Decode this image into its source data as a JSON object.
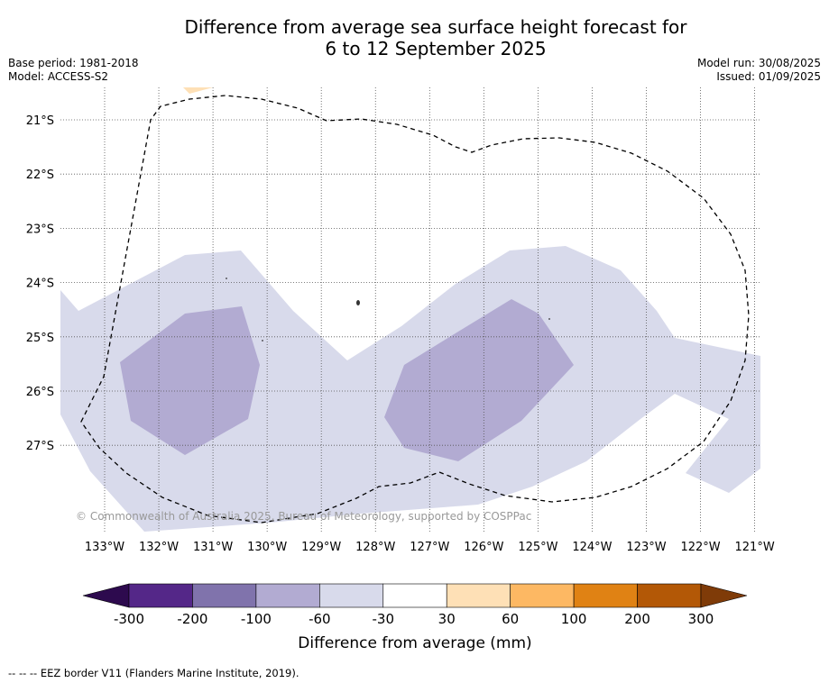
{
  "title_line1": "Difference from average sea surface height forecast for",
  "title_line2": "6 to 12 September 2025",
  "base_period": "Base period: 1981-2018",
  "model": "Model: ACCESS-S2",
  "model_run": "Model run: 30/08/2025",
  "issued": "Issued: 01/09/2025",
  "copyright": "© Commonwealth of Australia 2025, Bureau of Meteorology, supported by COSPPac",
  "lat_labels": [
    "21°S",
    "22°S",
    "23°S",
    "24°S",
    "25°S",
    "26°S",
    "27°S"
  ],
  "lon_labels": [
    "133°W",
    "132°W",
    "131°W",
    "130°W",
    "129°W",
    "128°W",
    "127°W",
    "126°W",
    "125°W",
    "124°W",
    "123°W",
    "122°W",
    "121°W"
  ],
  "colorbar": {
    "label": "Difference from average (mm)",
    "ticks": [
      "-300",
      "-200",
      "-100",
      "-60",
      "-30",
      "30",
      "60",
      "100",
      "200",
      "300"
    ],
    "low_extend_color": "#2d0a4e",
    "high_extend_color": "#7f3b08",
    "colors": [
      "#542788",
      "#8073ac",
      "#b2abd2",
      "#d8daeb",
      "#ffffff",
      "#fee0b6",
      "#fdb863",
      "#e08214",
      "#b35806"
    ]
  },
  "colors": {
    "light_purple": "#d8daeb",
    "mid_purple": "#b2abd2",
    "light_orange": "#fee0b6",
    "grid": "#555555"
  },
  "footnote": "--  --  -- EEZ border V11 (Flanders Marine Institute, 2019)."
}
